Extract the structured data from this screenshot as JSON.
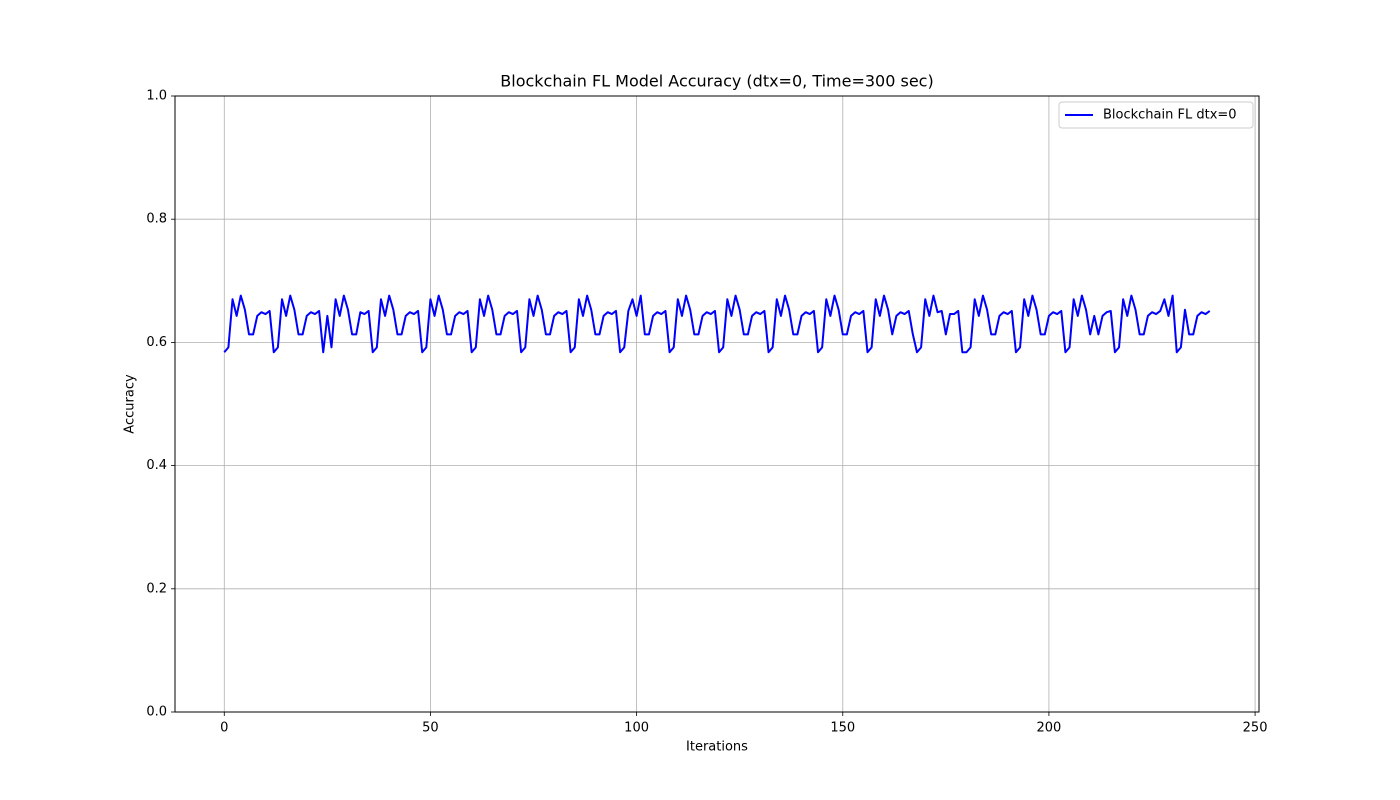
{
  "chart_data": {
    "type": "line",
    "title": "Blockchain FL Model Accuracy (dtx=0, Time=300 sec)",
    "x_label": "Iterations",
    "y_label": "Accuracy",
    "xlim": [
      -11.95,
      250.95
    ],
    "ylim": [
      0,
      1
    ],
    "xticks": [
      0,
      50,
      100,
      150,
      200,
      250
    ],
    "yticks": [
      {
        "value": 0,
        "label": "0.0"
      },
      0.2,
      0.4,
      0.6,
      0.8,
      {
        "value": 1,
        "label": "1.0"
      }
    ],
    "grid": true,
    "legend_position": "upper right",
    "x": [
      0,
      1,
      2,
      3,
      4,
      5,
      6,
      7,
      8,
      9,
      10,
      11,
      12,
      13,
      14,
      15,
      16,
      17,
      18,
      19,
      20,
      21,
      22,
      23,
      24,
      25,
      26,
      27,
      28,
      29,
      30,
      31,
      32,
      33,
      34,
      35,
      36,
      37,
      38,
      39,
      40,
      41,
      42,
      43,
      44,
      45,
      46,
      47,
      48,
      49,
      50,
      51,
      52,
      53,
      54,
      55,
      56,
      57,
      58,
      59,
      60,
      61,
      62,
      63,
      64,
      65,
      66,
      67,
      68,
      69,
      70,
      71,
      72,
      73,
      74,
      75,
      76,
      77,
      78,
      79,
      80,
      81,
      82,
      83,
      84,
      85,
      86,
      87,
      88,
      89,
      90,
      91,
      92,
      93,
      94,
      95,
      96,
      97,
      98,
      99,
      100,
      101,
      102,
      103,
      104,
      105,
      106,
      107,
      108,
      109,
      110,
      111,
      112,
      113,
      114,
      115,
      116,
      117,
      118,
      119,
      120,
      121,
      122,
      123,
      124,
      125,
      126,
      127,
      128,
      129,
      130,
      131,
      132,
      133,
      134,
      135,
      136,
      137,
      138,
      139,
      140,
      141,
      142,
      143,
      144,
      145,
      146,
      147,
      148,
      149,
      150,
      151,
      152,
      153,
      154,
      155,
      156,
      157,
      158,
      159,
      160,
      161,
      162,
      163,
      164,
      165,
      166,
      167,
      168,
      169,
      170,
      171,
      172,
      173,
      174,
      175,
      176,
      177,
      178,
      179,
      180,
      181,
      182,
      183,
      184,
      185,
      186,
      187,
      188,
      189,
      190,
      191,
      192,
      193,
      194,
      195,
      196,
      197,
      198,
      199,
      200,
      201,
      202,
      203,
      204,
      205,
      206,
      207,
      208,
      209,
      210,
      211,
      212,
      213,
      214,
      215,
      216,
      217,
      218,
      219,
      220,
      221,
      222,
      223,
      224,
      225,
      226,
      227,
      228,
      229,
      230,
      231,
      232,
      233,
      234,
      235,
      236,
      237,
      238,
      239
    ],
    "series": [
      {
        "name": "Blockchain FL dtx=0",
        "color": "#0000ff",
        "values": [
          0.584,
          0.592,
          0.67,
          0.643,
          0.676,
          0.653,
          0.613,
          0.613,
          0.643,
          0.649,
          0.646,
          0.651,
          0.584,
          0.592,
          0.67,
          0.643,
          0.676,
          0.653,
          0.613,
          0.613,
          0.643,
          0.649,
          0.646,
          0.651,
          0.584,
          0.643,
          0.592,
          0.67,
          0.643,
          0.676,
          0.653,
          0.613,
          0.613,
          0.649,
          0.646,
          0.651,
          0.584,
          0.592,
          0.67,
          0.643,
          0.676,
          0.653,
          0.613,
          0.613,
          0.643,
          0.649,
          0.646,
          0.651,
          0.584,
          0.592,
          0.67,
          0.643,
          0.676,
          0.653,
          0.613,
          0.613,
          0.643,
          0.649,
          0.646,
          0.651,
          0.584,
          0.592,
          0.67,
          0.643,
          0.676,
          0.653,
          0.613,
          0.613,
          0.643,
          0.649,
          0.646,
          0.651,
          0.584,
          0.592,
          0.67,
          0.643,
          0.676,
          0.653,
          0.613,
          0.613,
          0.643,
          0.649,
          0.646,
          0.651,
          0.584,
          0.592,
          0.67,
          0.643,
          0.676,
          0.653,
          0.613,
          0.613,
          0.643,
          0.649,
          0.646,
          0.651,
          0.584,
          0.592,
          0.651,
          0.67,
          0.643,
          0.676,
          0.613,
          0.613,
          0.643,
          0.649,
          0.646,
          0.651,
          0.584,
          0.592,
          0.67,
          0.643,
          0.676,
          0.653,
          0.613,
          0.613,
          0.643,
          0.649,
          0.646,
          0.651,
          0.584,
          0.592,
          0.67,
          0.643,
          0.676,
          0.653,
          0.613,
          0.613,
          0.643,
          0.649,
          0.646,
          0.651,
          0.584,
          0.592,
          0.67,
          0.643,
          0.676,
          0.653,
          0.613,
          0.613,
          0.643,
          0.649,
          0.646,
          0.651,
          0.584,
          0.592,
          0.67,
          0.643,
          0.676,
          0.653,
          0.613,
          0.613,
          0.643,
          0.649,
          0.646,
          0.651,
          0.584,
          0.592,
          0.67,
          0.643,
          0.676,
          0.653,
          0.613,
          0.643,
          0.649,
          0.646,
          0.651,
          0.613,
          0.584,
          0.592,
          0.67,
          0.643,
          0.676,
          0.649,
          0.651,
          0.613,
          0.646,
          0.646,
          0.651,
          0.584,
          0.584,
          0.592,
          0.67,
          0.643,
          0.676,
          0.653,
          0.613,
          0.613,
          0.643,
          0.649,
          0.646,
          0.651,
          0.584,
          0.592,
          0.67,
          0.643,
          0.676,
          0.653,
          0.613,
          0.613,
          0.643,
          0.649,
          0.646,
          0.651,
          0.584,
          0.592,
          0.67,
          0.643,
          0.676,
          0.653,
          0.613,
          0.643,
          0.613,
          0.643,
          0.649,
          0.651,
          0.584,
          0.592,
          0.67,
          0.643,
          0.676,
          0.653,
          0.613,
          0.613,
          0.643,
          0.649,
          0.646,
          0.651,
          0.67,
          0.643,
          0.676,
          0.584,
          0.592,
          0.653,
          0.613,
          0.613,
          0.643,
          0.649,
          0.646,
          0.651
        ]
      }
    ]
  }
}
